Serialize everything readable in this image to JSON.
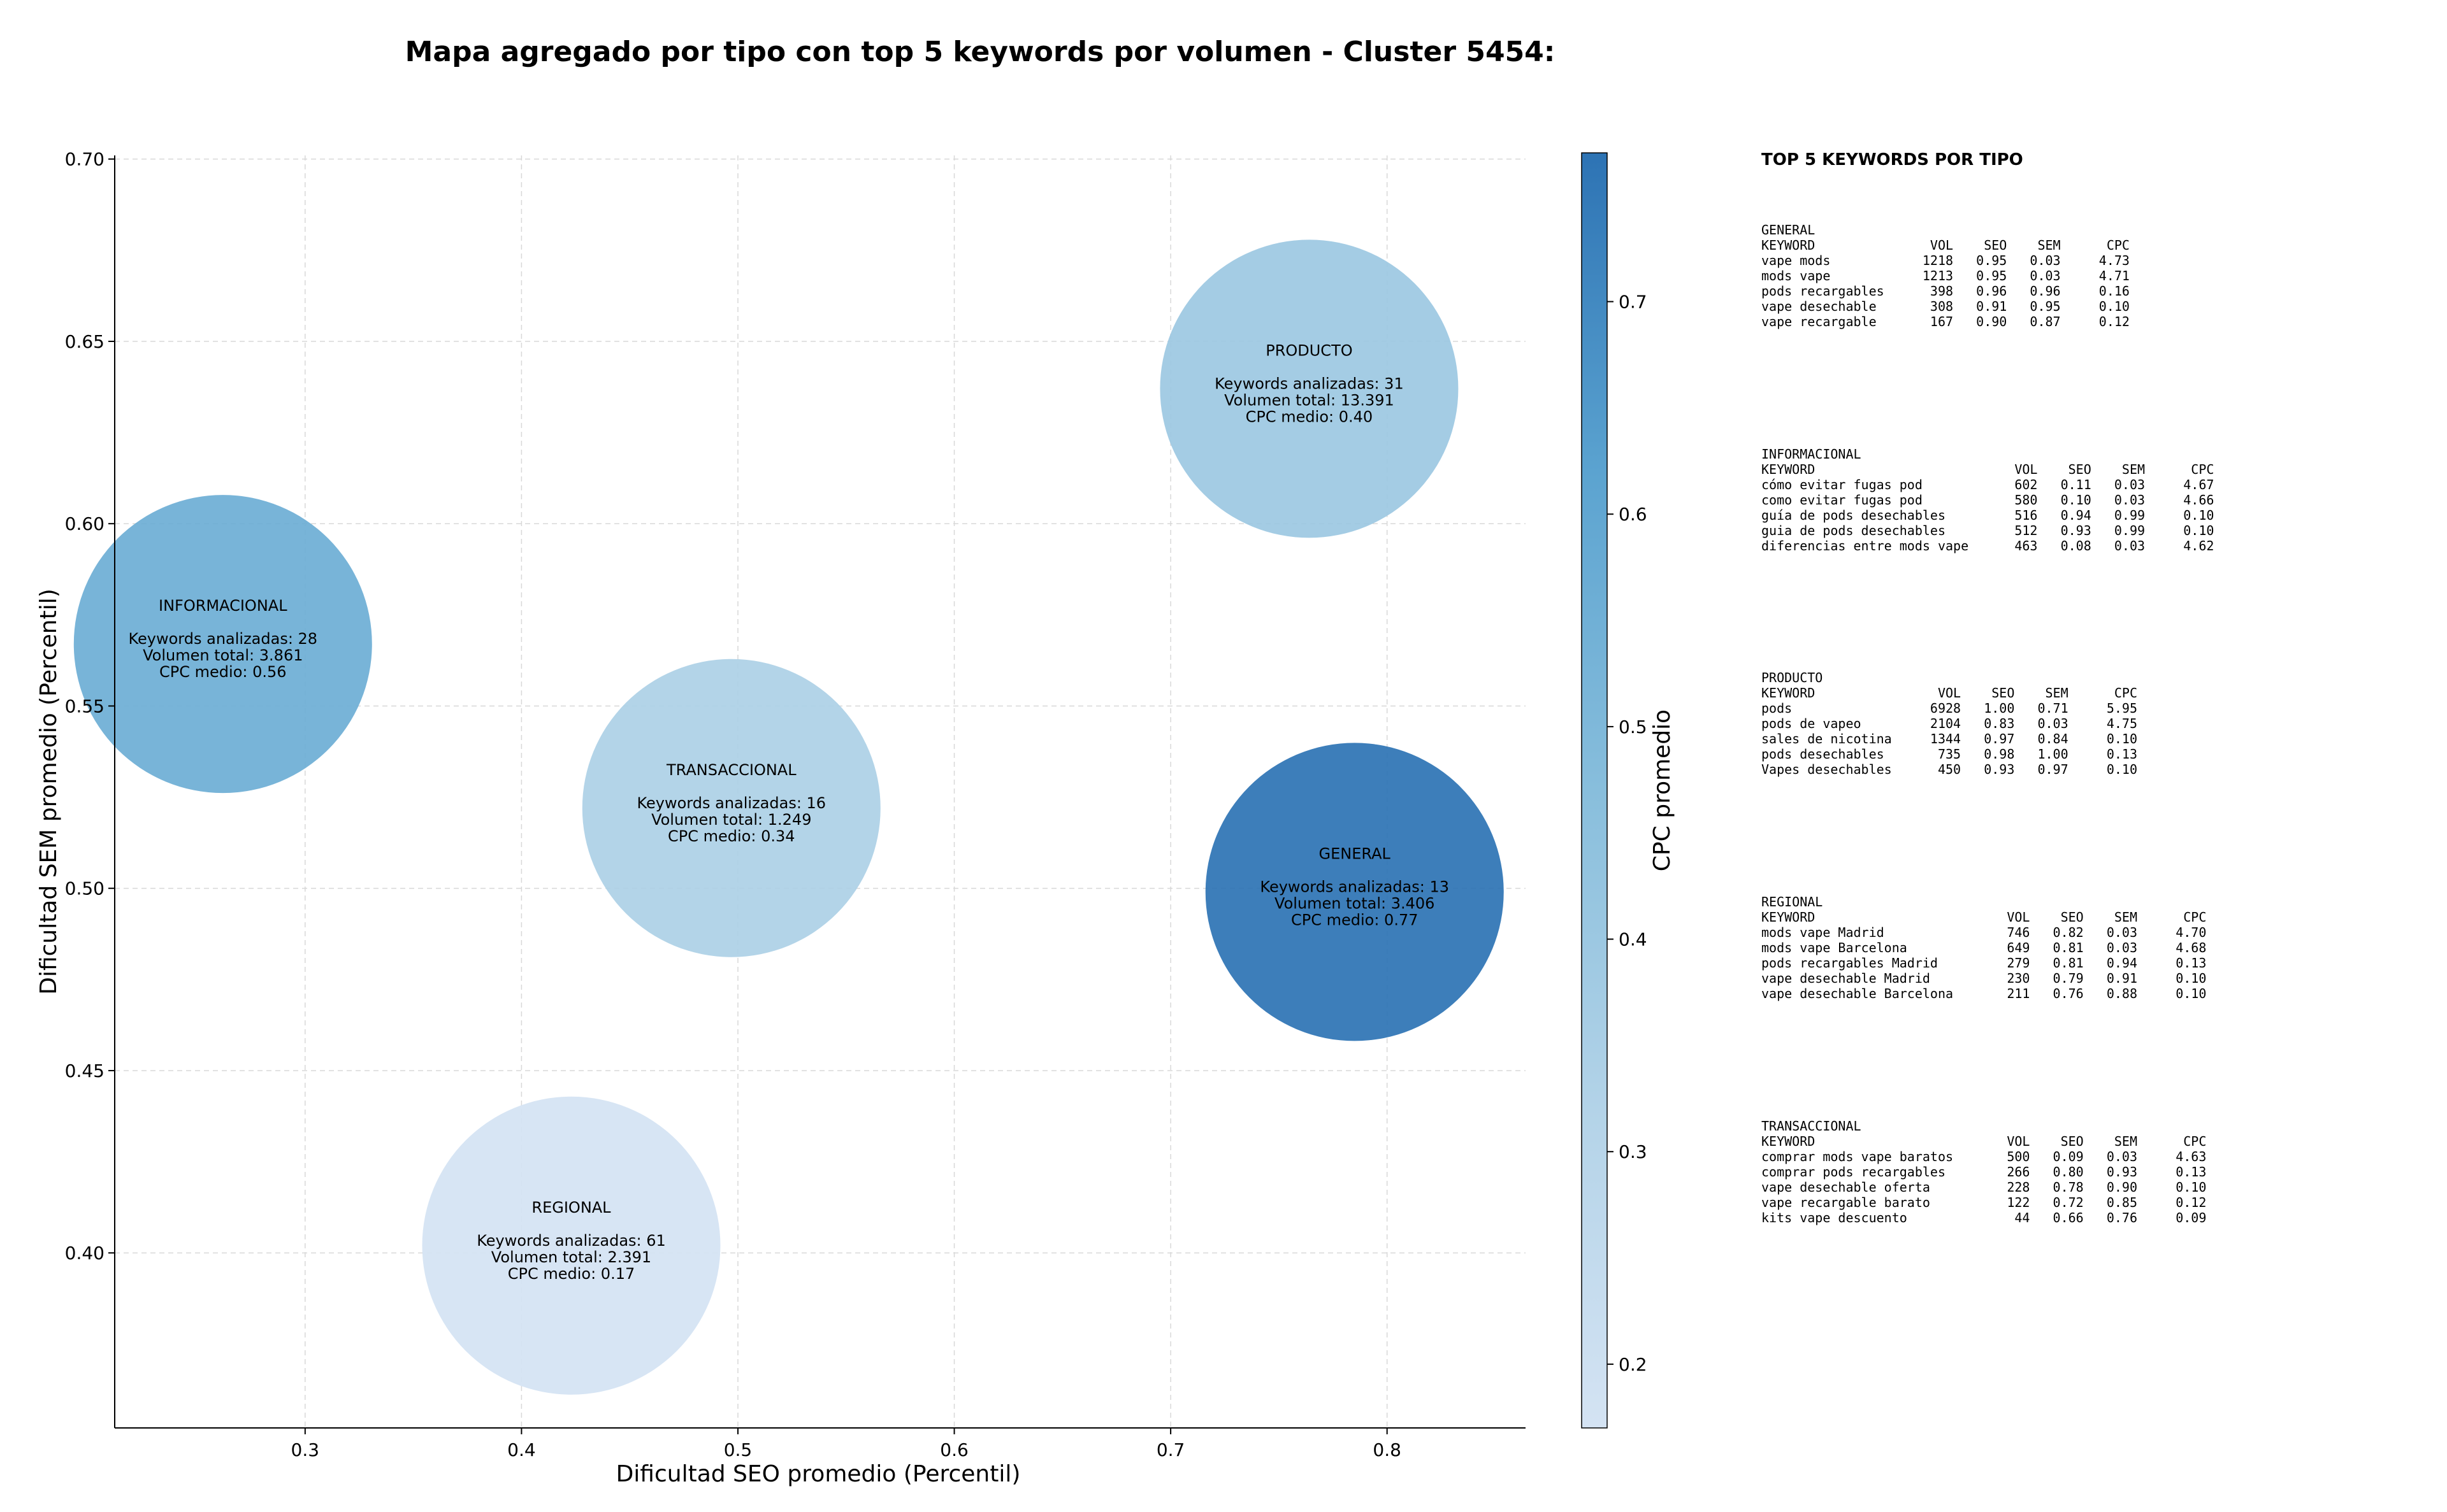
{
  "chart_data": {
    "type": "scatter",
    "title": "Mapa agregado por tipo con top 5 keywords por volumen - Cluster 5454:",
    "xlabel": "Dificultad SEO promedio (Percentil)",
    "ylabel": "Dificultad SEM promedio (Percentil)",
    "xlim": [
      0.212,
      0.864
    ],
    "ylim": [
      0.352,
      0.701
    ],
    "xticks": [
      "0.3",
      "0.4",
      "0.5",
      "0.6",
      "0.7",
      "0.8"
    ],
    "yticks": [
      "0.40",
      "0.45",
      "0.50",
      "0.55",
      "0.60",
      "0.65",
      "0.70"
    ],
    "grid": true,
    "colorbar": {
      "label": "CPC promedio",
      "range": [
        0.17,
        0.77
      ],
      "ticks": [
        "0.2",
        "0.3",
        "0.4",
        "0.5",
        "0.6",
        "0.7"
      ]
    },
    "points": [
      {
        "type": "PRODUCTO",
        "keywords_label": "Keywords analizadas: 31",
        "volume_label": "Volumen total: 13.391",
        "cpc_label": "CPC medio: 0.40",
        "x": 0.764,
        "y": 0.637,
        "cpc": 0.4,
        "keywords": 31
      },
      {
        "type": "INFORMACIONAL",
        "keywords_label": "Keywords analizadas: 28",
        "volume_label": "Volumen total: 3.861",
        "cpc_label": "CPC medio: 0.56",
        "x": 0.262,
        "y": 0.567,
        "cpc": 0.56,
        "keywords": 28
      },
      {
        "type": "TRANSACCIONAL",
        "keywords_label": "Keywords analizadas: 16",
        "volume_label": "Volumen total: 1.249",
        "cpc_label": "CPC medio: 0.34",
        "x": 0.497,
        "y": 0.522,
        "cpc": 0.34,
        "keywords": 16
      },
      {
        "type": "GENERAL",
        "keywords_label": "Keywords analizadas: 13",
        "volume_label": "Volumen total: 3.406",
        "cpc_label": "CPC medio: 0.77",
        "x": 0.785,
        "y": 0.499,
        "cpc": 0.77,
        "keywords": 13
      },
      {
        "type": "REGIONAL",
        "keywords_label": "Keywords analizadas: 61",
        "volume_label": "Volumen total: 2.391",
        "cpc_label": "CPC medio: 0.17",
        "x": 0.423,
        "y": 0.402,
        "cpc": 0.17,
        "keywords": 61
      }
    ]
  },
  "side_panel": {
    "title": "TOP 5 KEYWORDS POR TIPO",
    "sections": [
      {
        "lines": [
          "GENERAL",
          "KEYWORD               VOL    SEO    SEM      CPC",
          "vape mods            1218   0.95   0.03     4.73",
          "mods vape            1213   0.95   0.03     4.71",
          "pods recargables      398   0.96   0.96     0.16",
          "vape desechable       308   0.91   0.95     0.10",
          "vape recargable       167   0.90   0.87     0.12"
        ]
      },
      {
        "lines": [
          "INFORMACIONAL",
          "KEYWORD                          VOL    SEO    SEM      CPC",
          "cómo evitar fugas pod            602   0.11   0.03     4.67",
          "como evitar fugas pod            580   0.10   0.03     4.66",
          "guía de pods desechables         516   0.94   0.99     0.10",
          "guia de pods desechables         512   0.93   0.99     0.10",
          "diferencias entre mods vape      463   0.08   0.03     4.62"
        ]
      },
      {
        "lines": [
          "PRODUCTO",
          "KEYWORD                VOL    SEO    SEM      CPC",
          "pods                  6928   1.00   0.71     5.95",
          "pods de vapeo         2104   0.83   0.03     4.75",
          "sales de nicotina     1344   0.97   0.84     0.10",
          "pods desechables       735   0.98   1.00     0.13",
          "Vapes desechables      450   0.93   0.97     0.10"
        ]
      },
      {
        "lines": [
          "REGIONAL",
          "KEYWORD                         VOL    SEO    SEM      CPC",
          "mods vape Madrid                746   0.82   0.03     4.70",
          "mods vape Barcelona             649   0.81   0.03     4.68",
          "pods recargables Madrid         279   0.81   0.94     0.13",
          "vape desechable Madrid          230   0.79   0.91     0.10",
          "vape desechable Barcelona       211   0.76   0.88     0.10"
        ]
      },
      {
        "lines": [
          "TRANSACCIONAL",
          "KEYWORD                         VOL    SEO    SEM      CPC",
          "comprar mods vape baratos       500   0.09   0.03     4.63",
          "comprar pods recargables        266   0.80   0.93     0.13",
          "vape desechable oferta          228   0.78   0.90     0.10",
          "vape recargable barato          122   0.72   0.85     0.12",
          "kits vape descuento              44   0.66   0.76     0.09"
        ]
      }
    ]
  }
}
